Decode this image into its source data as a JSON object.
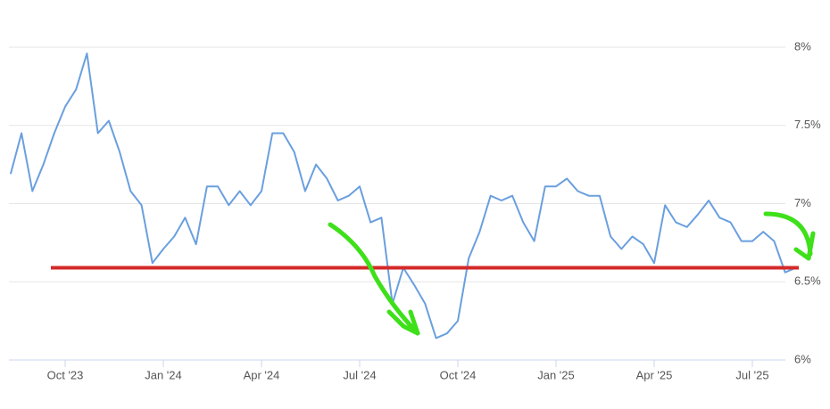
{
  "chart_data": {
    "type": "line",
    "categories": [
      null,
      null,
      null,
      null,
      null,
      "Oct '23",
      null,
      null,
      null,
      null,
      null,
      null,
      null,
      null,
      "Jan '24",
      null,
      null,
      null,
      null,
      null,
      null,
      null,
      null,
      "Apr '24",
      null,
      null,
      null,
      null,
      null,
      null,
      null,
      null,
      "Jul '24",
      null,
      null,
      null,
      null,
      null,
      null,
      null,
      null,
      "Oct '24",
      null,
      null,
      null,
      null,
      null,
      null,
      null,
      null,
      "Jan '25",
      null,
      null,
      null,
      null,
      null,
      null,
      null,
      null,
      "Apr '25",
      null,
      null,
      null,
      null,
      null,
      null,
      null,
      null,
      "Jul '25",
      null,
      null,
      null,
      null
    ],
    "series": [
      {
        "color": "#6a9fde",
        "values": [
          7.19,
          7.45,
          7.08,
          7.25,
          7.45,
          7.62,
          7.73,
          7.96,
          7.45,
          7.53,
          7.33,
          7.08,
          6.99,
          6.62,
          6.71,
          6.79,
          6.91,
          6.74,
          7.11,
          7.11,
          6.99,
          7.08,
          6.99,
          7.08,
          7.45,
          7.45,
          7.33,
          7.08,
          7.25,
          7.16,
          7.02,
          7.05,
          7.11,
          6.88,
          6.91,
          6.36,
          6.59,
          6.48,
          6.36,
          6.14,
          6.17,
          6.25,
          6.65,
          6.82,
          7.05,
          7.02,
          7.05,
          6.88,
          6.76,
          7.11,
          7.11,
          7.16,
          7.08,
          7.05,
          7.05,
          6.79,
          6.71,
          6.79,
          6.74,
          6.62,
          6.99,
          6.88,
          6.85,
          6.93,
          7.02,
          6.91,
          6.88,
          6.76,
          6.76,
          6.82,
          6.76,
          6.56,
          6.59
        ]
      }
    ],
    "ylim": [
      6,
      8
    ],
    "yticks": [
      {
        "value": 6,
        "label": "6%"
      },
      {
        "value": 6.5,
        "label": "6.5%"
      },
      {
        "value": 7,
        "label": "7%"
      },
      {
        "value": 7.5,
        "label": "7.5%"
      },
      {
        "value": 8,
        "label": "8%"
      }
    ],
    "grid": true,
    "reference_line": {
      "value": 6.59,
      "color": "#d42a2a"
    }
  }
}
